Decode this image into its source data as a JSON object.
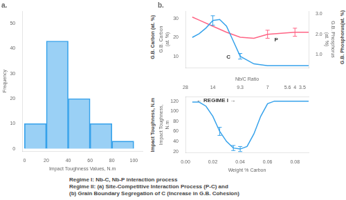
{
  "chart_data": [
    {
      "type": "histogram",
      "title": "a.",
      "bins": [
        0,
        20,
        40,
        60,
        80,
        100
      ],
      "values": [
        10,
        43,
        20,
        10,
        3
      ],
      "xlabel": "Impact Toughness Values, N.m",
      "ylabel": "Frequency",
      "xlim": [
        -2,
        108
      ],
      "ylim": [
        -1,
        55
      ],
      "xticks": [
        0,
        20,
        40,
        60,
        80,
        100
      ],
      "yticks": [
        0,
        10,
        20,
        30,
        40,
        50
      ],
      "grid": false
    },
    {
      "type": "line",
      "title": "b.",
      "xlim": [
        0,
        0.09
      ],
      "xticks": [
        0,
        0.02,
        0.04,
        0.06,
        0.08
      ],
      "tick_labels": "y",
      "ylabel": "G.B. Carbon\n(at. %)",
      "ylim": [
        4,
        34
      ],
      "yticks": [
        10,
        20,
        30
      ],
      "y2label": "G.B. Phosphorus\n(at. %)",
      "y2lim": [
        0.35,
        3.15
      ],
      "y2ticks": [
        {
          "value": 1.0,
          "label": "1.0"
        },
        {
          "value": 2.0,
          "label": "2.0"
        },
        {
          "value": 3.0,
          "label": "3.0"
        }
      ],
      "grid": false,
      "outer_labels": [
        "G.B. Carbon (at. %)",
        "G.B. Phosphorus(at. %)"
      ],
      "annotations": [
        {
          "text": "C",
          "x": 0.03,
          "y": 11
        },
        {
          "text": "P",
          "x": 0.065,
          "y": 20
        }
      ],
      "series": [
        {
          "x": [
            0.005,
            0.01,
            0.015,
            0.02,
            0.025,
            0.03,
            0.035,
            0.04,
            0.05,
            0.06,
            0.07,
            0.08,
            0.09
          ],
          "values": [
            20,
            22,
            25,
            29,
            29.5,
            26,
            18,
            10,
            6,
            5,
            5,
            5,
            5
          ],
          "line_style": "solid",
          "marker": "none",
          "error_bars": {
            "x": [
              0.02,
              0.04
            ],
            "y": [
              29,
              10
            ],
            "err": [
              2.5,
              1.5
            ]
          }
        },
        {
          "x": [
            0.005,
            0.01,
            0.02,
            0.03,
            0.04,
            0.05,
            0.06,
            0.07,
            0.08,
            0.09
          ],
          "values": [
            2.85,
            2.7,
            2.4,
            2.1,
            1.85,
            1.8,
            2.0,
            2.05,
            2.1,
            2.1
          ],
          "axis": "y2",
          "line_style": "solid",
          "marker": "none",
          "error_bars": {
            "x": [
              0.06,
              0.08
            ],
            "y": [
              2.0,
              2.1
            ],
            "err": [
              0.2,
              0.2
            ]
          }
        }
      ]
    },
    {
      "type": "line",
      "xlabel": "Weight % Carbon",
      "xlim": [
        0,
        0.09
      ],
      "xticks": [
        {
          "value": 0,
          "label": "0.00"
        },
        0.02,
        0.04,
        0.06,
        0.08
      ],
      "x2label": "Nb/C Ratio",
      "x2lim": [
        0,
        0.09
      ],
      "x2ticks": [
        {
          "value": 0,
          "label": "28"
        },
        {
          "value": 0.02,
          "label": "14"
        },
        {
          "value": 0.04,
          "label": "9.3"
        },
        {
          "value": 0.06,
          "label": "7"
        },
        {
          "value": 0.08,
          "label": "5.6  4  3.5"
        }
      ],
      "ylabel": "Impact Toughness,\nN.m",
      "ylim": [
        18,
        128
      ],
      "yticks": [
        20,
        40,
        60,
        80,
        100,
        120
      ],
      "grid": false,
      "outer_labels": [
        "Impact Toughness, N.m"
      ],
      "annotations": [
        {
          "text": "← REGIME I →",
          "x": 0.008,
          "y": 126.5
        }
      ],
      "series": [
        {
          "x": [
            0.005,
            0.01,
            0.015,
            0.02,
            0.025,
            0.03,
            0.035,
            0.04,
            0.045,
            0.05,
            0.055,
            0.06,
            0.065,
            0.07,
            0.08,
            0.09
          ],
          "values": [
            118,
            118,
            110,
            90,
            60,
            40,
            27,
            25,
            30,
            55,
            90,
            115,
            120,
            120,
            120,
            120
          ],
          "line_style": "solid",
          "marker": "none",
          "error_bars": {
            "x": [
              0.025,
              0.035,
              0.04
            ],
            "y": [
              60,
              27,
              25
            ],
            "err": [
              8,
              5,
              5
            ]
          }
        }
      ],
      "footnotes": [
        "Regime I:  Nb-C, Nb-P interaction process",
        "Regime II: (a) Site-Competitive Interaction Process (P-C) and",
        "(b) Grain Boundary Segregation of C (Increase in G.B. Cohesion)"
      ]
    }
  ]
}
